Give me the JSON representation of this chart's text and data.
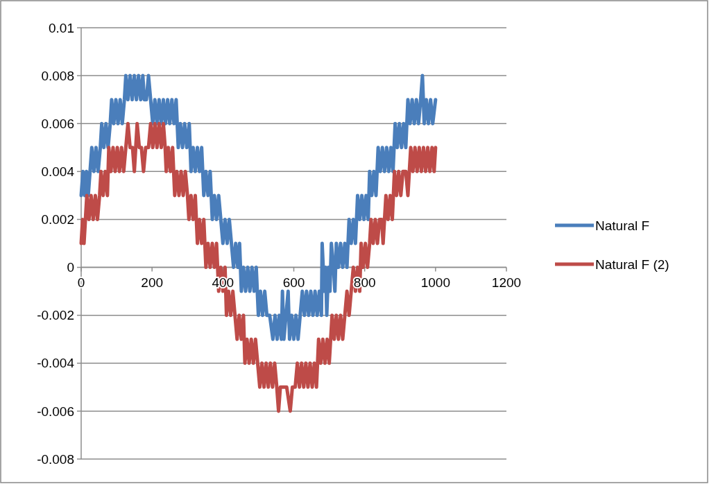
{
  "chart_data": {
    "type": "line",
    "xlim": [
      0,
      1200
    ],
    "xticks": [
      0,
      200,
      400,
      600,
      800,
      1000,
      1200
    ],
    "ylim": [
      -0.008,
      0.01
    ],
    "yticks": [
      {
        "value": -0.008,
        "label": "-0.008"
      },
      {
        "value": -0.006,
        "label": "-0.006"
      },
      {
        "value": -0.004,
        "label": "-0.004"
      },
      {
        "value": -0.002,
        "label": "-0.002"
      },
      {
        "value": 0,
        "label": "0"
      },
      {
        "value": 0.002,
        "label": "0.002"
      },
      {
        "value": 0.004,
        "label": "0.004"
      },
      {
        "value": 0.006,
        "label": "0.006"
      },
      {
        "value": 0.008,
        "label": "0.008"
      },
      {
        "value": 0.01,
        "label": "0.01"
      }
    ],
    "grid": "y",
    "legend": "right",
    "marker": "none",
    "line_style": "solid",
    "series": [
      {
        "name": "Natural F",
        "color": "#4a7ebb",
        "x": [
          0,
          5,
          10,
          15,
          20,
          25,
          30,
          36,
          42,
          48,
          54,
          58,
          64,
          70,
          76,
          82,
          86,
          92,
          98,
          104,
          110,
          116,
          122,
          126,
          132,
          138,
          144,
          150,
          156,
          162,
          168,
          174,
          178,
          184,
          190,
          196,
          202,
          208,
          214,
          220,
          226,
          232,
          238,
          244,
          250,
          256,
          262,
          268,
          274,
          280,
          286,
          292,
          298,
          305,
          310,
          316,
          322,
          328,
          334,
          340,
          346,
          352,
          358,
          364,
          370,
          376,
          382,
          388,
          394,
          400,
          406,
          412,
          418,
          424,
          430,
          436,
          442,
          447,
          452,
          458,
          464,
          470,
          476,
          482,
          488,
          494,
          500,
          506,
          512,
          518,
          524,
          532,
          541,
          547,
          553,
          559,
          565,
          568,
          572,
          578,
          584,
          588,
          594,
          600,
          606,
          612,
          618,
          624,
          630,
          636,
          642,
          648,
          654,
          660,
          666,
          672,
          678,
          680,
          686,
          690,
          693,
          698,
          702,
          706,
          712,
          716,
          720,
          726,
          732,
          738,
          744,
          750,
          756,
          762,
          768,
          774,
          780,
          786,
          792,
          798,
          804,
          810,
          814,
          820,
          826,
          832,
          838,
          844,
          850,
          856,
          862,
          868,
          874,
          880,
          886,
          892,
          898,
          904,
          910,
          916,
          922,
          928,
          934,
          940,
          946,
          952,
          958,
          963,
          968,
          974,
          980,
          986,
          992,
          1000
        ],
        "values": [
          0.003,
          0.004,
          0.003,
          0.004,
          0.003,
          0.004,
          0.005,
          0.004,
          0.005,
          0.004,
          0.005,
          0.006,
          0.005,
          0.006,
          0.005,
          0.006,
          0.007,
          0.006,
          0.007,
          0.006,
          0.007,
          0.006,
          0.007,
          0.008,
          0.007,
          0.008,
          0.007,
          0.008,
          0.007,
          0.008,
          0.007,
          0.008,
          0.007,
          0.007,
          0.008,
          0.007,
          0.006,
          0.007,
          0.006,
          0.007,
          0.006,
          0.007,
          0.006,
          0.007,
          0.006,
          0.007,
          0.006,
          0.007,
          0.005,
          0.006,
          0.005,
          0.006,
          0.005,
          0.006,
          0.004,
          0.005,
          0.004,
          0.005,
          0.004,
          0.005,
          0.003,
          0.004,
          0.003,
          0.004,
          0.002,
          0.003,
          0.002,
          0.003,
          0.002,
          0.001,
          0.002,
          0.001,
          0.002,
          0.001,
          0,
          0.001,
          0,
          0.001,
          -0.001,
          0,
          -0.001,
          0,
          -0.001,
          0,
          -0.001,
          0,
          -0.002,
          -0.001,
          -0.002,
          -0.001,
          -0.002,
          -0.002,
          -0.003,
          -0.002,
          -0.003,
          -0.002,
          -0.003,
          -0.001,
          -0.003,
          -0.002,
          -0.001,
          -0.003,
          -0.002,
          -0.003,
          -0.002,
          -0.003,
          -0.002,
          -0.001,
          -0.002,
          -0.001,
          -0.002,
          -0.001,
          -0.002,
          -0.001,
          -0.002,
          -0.001,
          -0.002,
          0.001,
          -0.001,
          0,
          -0.002,
          0,
          -0.001,
          0.001,
          0,
          -0.001,
          0.001,
          0,
          0.001,
          0,
          0.001,
          0,
          0.002,
          0.001,
          0.002,
          0.001,
          0.003,
          0.002,
          0.003,
          0.002,
          0.003,
          0.002,
          0.004,
          0.003,
          0.004,
          0.003,
          0.005,
          0.004,
          0.005,
          0.004,
          0.005,
          0.004,
          0.005,
          0.004,
          0.006,
          0.005,
          0.006,
          0.005,
          0.006,
          0.005,
          0.007,
          0.006,
          0.007,
          0.006,
          0.007,
          0.006,
          0.007,
          0.008,
          0.006,
          0.007,
          0.006,
          0.007,
          0.006,
          0.007
        ]
      },
      {
        "name": "Natural F (2)",
        "color": "#be4b48",
        "x": [
          0,
          4,
          8,
          12,
          16,
          22,
          28,
          34,
          40,
          46,
          52,
          56,
          62,
          68,
          74,
          78,
          84,
          90,
          96,
          102,
          108,
          114,
          120,
          126,
          132,
          138,
          145,
          150,
          158,
          164,
          170,
          176,
          182,
          190,
          196,
          202,
          208,
          214,
          220,
          226,
          232,
          237,
          240,
          246,
          252,
          258,
          264,
          270,
          276,
          282,
          288,
          294,
          300,
          304,
          310,
          316,
          322,
          328,
          334,
          340,
          346,
          352,
          358,
          364,
          370,
          376,
          382,
          388,
          394,
          400,
          406,
          410,
          416,
          422,
          428,
          434,
          440,
          446,
          452,
          458,
          462,
          468,
          474,
          480,
          486,
          492,
          498,
          504,
          510,
          516,
          522,
          528,
          534,
          540,
          546,
          552,
          557,
          562,
          570,
          580,
          590,
          596,
          604,
          610,
          616,
          622,
          628,
          634,
          640,
          646,
          652,
          658,
          664,
          670,
          676,
          682,
          688,
          694,
          700,
          704,
          708,
          714,
          720,
          726,
          732,
          738,
          744,
          750,
          756,
          762,
          768,
          774,
          780,
          786,
          790,
          796,
          802,
          808,
          814,
          818,
          824,
          830,
          836,
          842,
          848,
          852,
          856,
          860,
          866,
          872,
          878,
          884,
          890,
          896,
          902,
          908,
          916,
          922,
          926,
          930,
          936,
          942,
          948,
          954,
          960,
          966,
          972,
          978,
          984,
          990,
          996,
          1000
        ],
        "values": [
          0.001,
          0.002,
          0.001,
          0.002,
          0.003,
          0.002,
          0.003,
          0.002,
          0.003,
          0.002,
          0.003,
          0.004,
          0.003,
          0.004,
          0.003,
          0.005,
          0.004,
          0.005,
          0.004,
          0.005,
          0.004,
          0.005,
          0.004,
          0.005,
          0.006,
          0.005,
          0.005,
          0.004,
          0.006,
          0.005,
          0.005,
          0.004,
          0.005,
          0.005,
          0.006,
          0.005,
          0.006,
          0.005,
          0.006,
          0.005,
          0.006,
          0.005,
          0.004,
          0.005,
          0.004,
          0.005,
          0.003,
          0.004,
          0.003,
          0.004,
          0.003,
          0.004,
          0.003,
          0.002,
          0.003,
          0.002,
          0.003,
          0.001,
          0.002,
          0.001,
          0.002,
          0,
          0.001,
          0,
          0.001,
          0,
          0.001,
          -0.001,
          0,
          -0.001,
          0,
          -0.002,
          -0.001,
          -0.002,
          -0.001,
          -0.002,
          -0.003,
          -0.002,
          -0.003,
          -0.002,
          -0.004,
          -0.003,
          -0.004,
          -0.003,
          -0.004,
          -0.003,
          -0.004,
          -0.005,
          -0.004,
          -0.005,
          -0.004,
          -0.005,
          -0.004,
          -0.005,
          -0.004,
          -0.005,
          -0.006,
          -0.005,
          -0.005,
          -0.005,
          -0.006,
          -0.005,
          -0.005,
          -0.004,
          -0.005,
          -0.004,
          -0.005,
          -0.004,
          -0.005,
          -0.004,
          -0.005,
          -0.004,
          -0.005,
          -0.003,
          -0.004,
          -0.003,
          -0.004,
          -0.003,
          -0.004,
          -0.003,
          -0.002,
          -0.003,
          -0.002,
          -0.003,
          -0.002,
          -0.003,
          -0.002,
          -0.001,
          -0.002,
          -0.001,
          0,
          -0.001,
          0,
          -0.001,
          0.001,
          0,
          0.001,
          0,
          0.001,
          0.002,
          0.001,
          0.002,
          0.001,
          0.002,
          0.002,
          0.001,
          0.002,
          0.003,
          0.002,
          0.003,
          0.002,
          0.004,
          0.003,
          0.004,
          0.003,
          0.004,
          0.004,
          0.003,
          0.004,
          0.005,
          0.004,
          0.005,
          0.004,
          0.005,
          0.004,
          0.005,
          0.004,
          0.005,
          0.004,
          0.005,
          0.004,
          0.005
        ]
      }
    ]
  }
}
